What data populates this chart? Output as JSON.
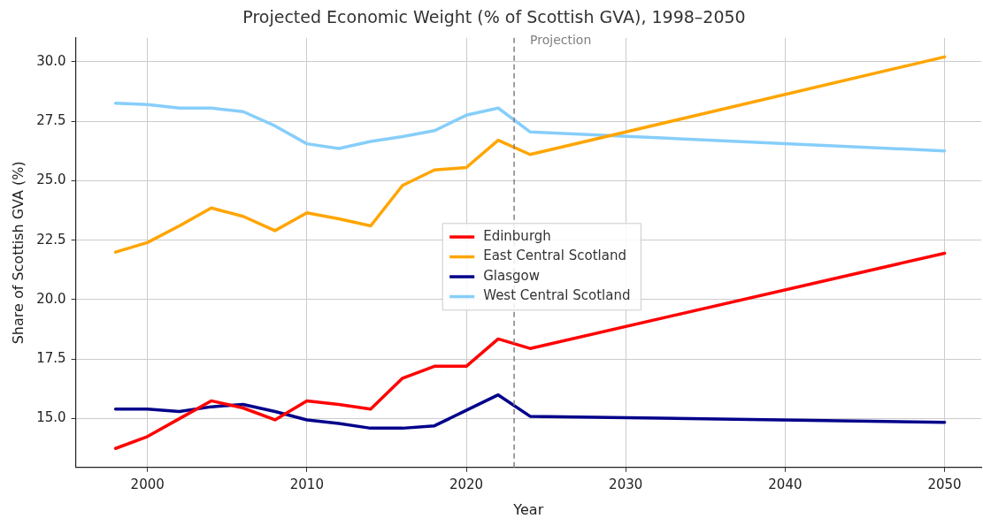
{
  "chart_data": {
    "type": "line",
    "title": "Projected Economic Weight (% of Scottish GVA), 1998–2050",
    "xlabel": "Year",
    "ylabel": "Share of Scottish GVA (%)",
    "x": [
      1998,
      2000,
      2002,
      2004,
      2006,
      2008,
      2010,
      2012,
      2014,
      2016,
      2018,
      2020,
      2022,
      2024,
      2050
    ],
    "series": [
      {
        "name": "Edinburgh",
        "color": "#ff0000",
        "values": [
          13.75,
          14.25,
          15.0,
          15.75,
          15.45,
          14.95,
          15.75,
          15.6,
          15.4,
          16.7,
          17.2,
          17.2,
          18.35,
          17.95,
          21.95
        ]
      },
      {
        "name": "East Central Scotland",
        "color": "#ffa500",
        "values": [
          22.0,
          22.4,
          23.1,
          23.85,
          23.5,
          22.9,
          23.65,
          23.4,
          23.1,
          24.8,
          25.45,
          25.55,
          26.7,
          26.1,
          30.2
        ]
      },
      {
        "name": "Glasgow",
        "color": "#00008b",
        "values": [
          15.4,
          15.4,
          15.3,
          15.5,
          15.6,
          15.3,
          14.95,
          14.8,
          14.6,
          14.6,
          14.7,
          15.35,
          16.0,
          15.1,
          14.85
        ]
      },
      {
        "name": "West Central Scotland",
        "color": "#87cefa",
        "values": [
          28.25,
          28.2,
          28.05,
          28.05,
          27.9,
          27.3,
          26.55,
          26.35,
          26.65,
          26.85,
          27.1,
          27.75,
          28.05,
          27.05,
          26.25
        ]
      }
    ],
    "xlim": [
      1995.5,
      2052.3
    ],
    "xticks": [
      2000,
      2010,
      2020,
      2030,
      2040,
      2050
    ],
    "ylim": [
      12.95,
      31.0
    ],
    "yticks": [
      {
        "value": 15,
        "label": "15.0"
      },
      {
        "value": 17.5,
        "label": "17.5"
      },
      {
        "value": 20,
        "label": "20.0"
      },
      {
        "value": 22.5,
        "label": "22.5"
      },
      {
        "value": 25,
        "label": "25.0"
      },
      {
        "value": 27.5,
        "label": "27.5"
      },
      {
        "value": 30,
        "label": "30.0"
      }
    ],
    "ref_lines": [
      {
        "axis": "x",
        "value": 2023,
        "label": "Projection",
        "color": "#808080",
        "line_style": "dashed"
      }
    ],
    "grid": true,
    "legend": "center",
    "marker": "none",
    "line_style": "solid"
  }
}
